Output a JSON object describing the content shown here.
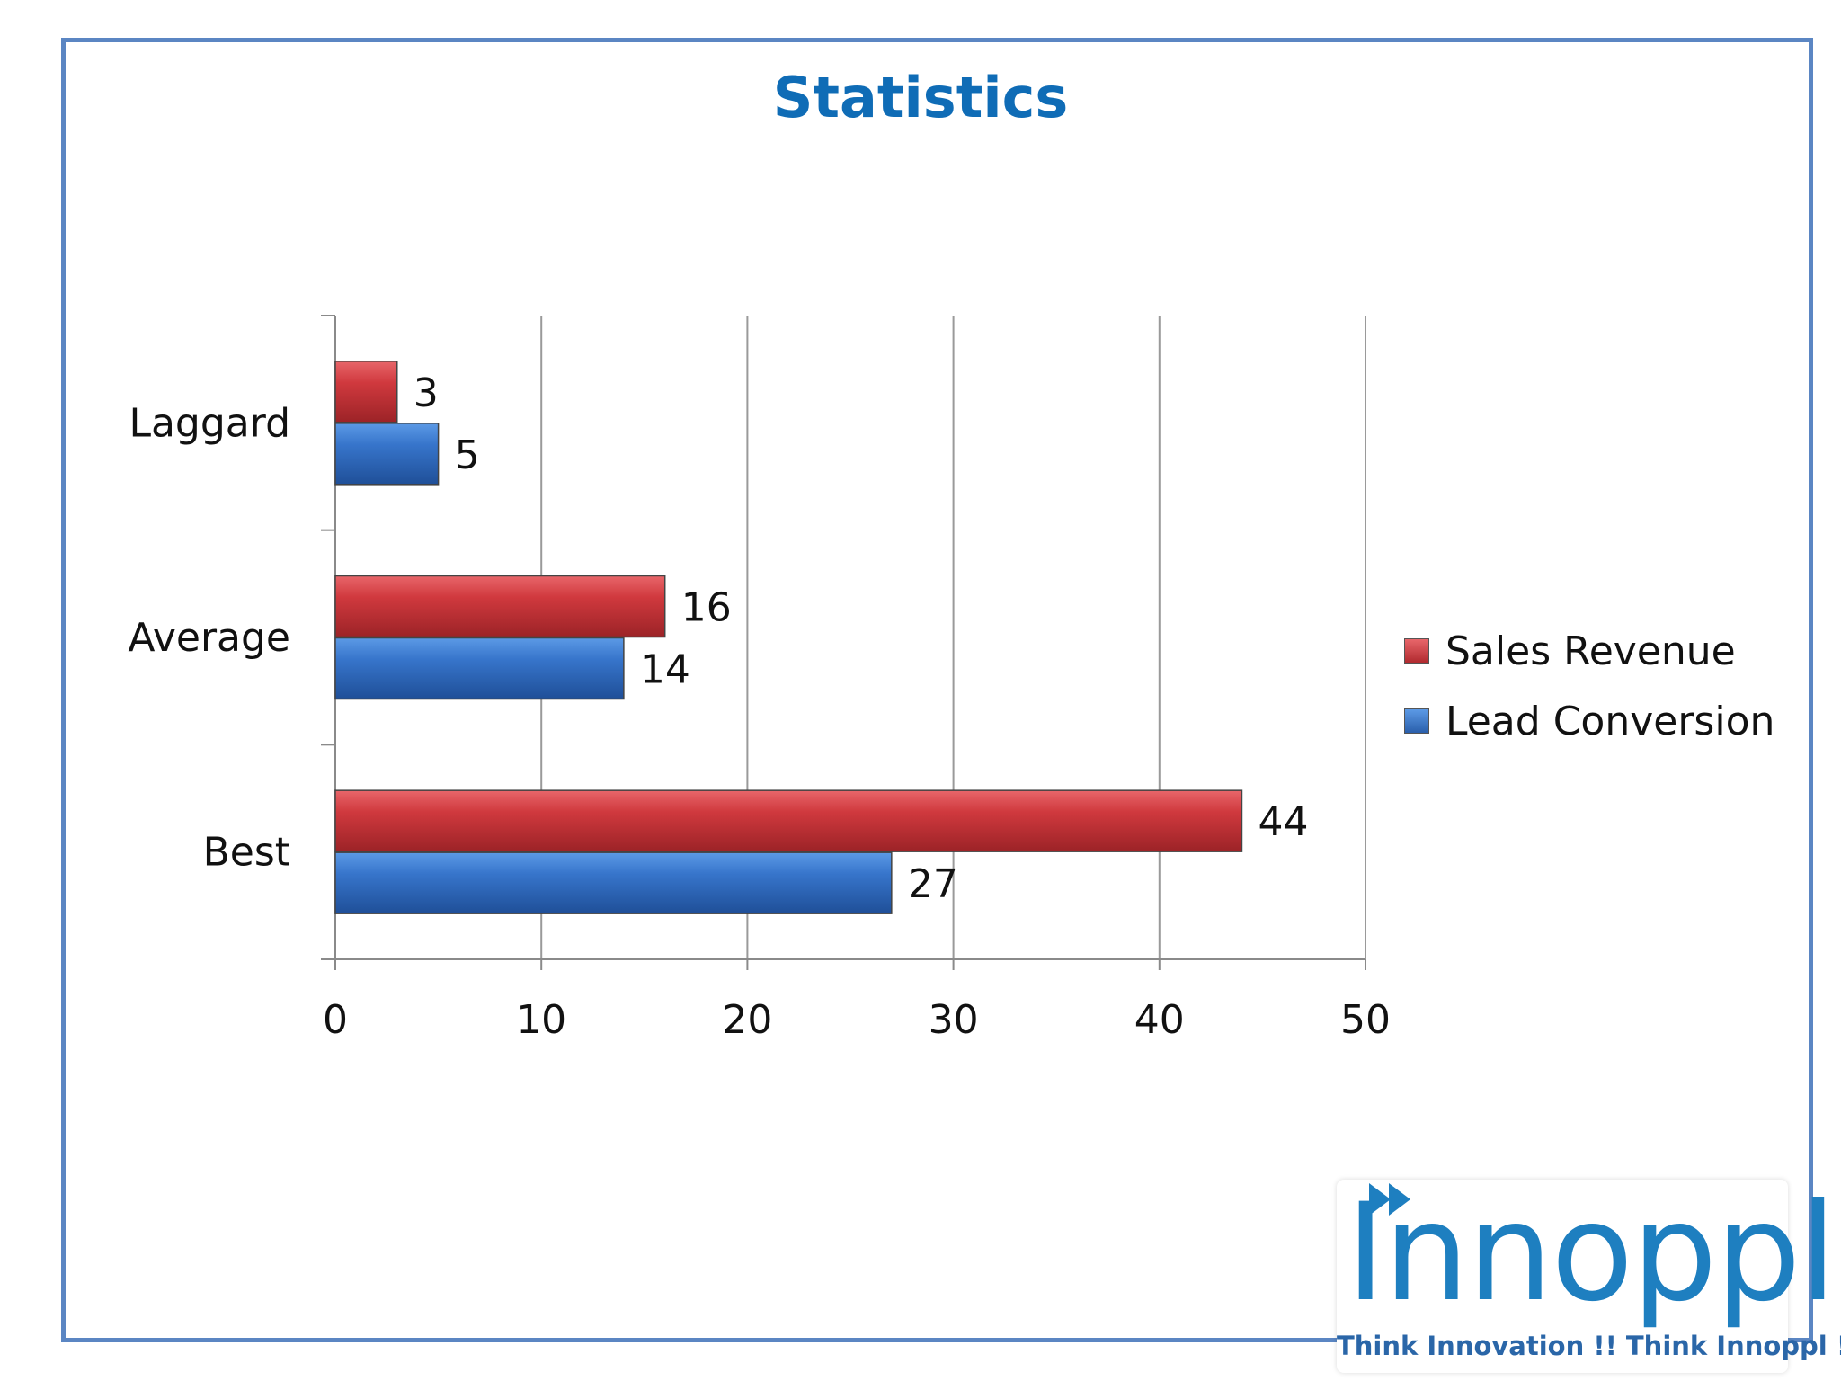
{
  "slide": {
    "title": "Statistics"
  },
  "chart_data": {
    "type": "bar",
    "orientation": "horizontal",
    "title": "Statistics",
    "categories": [
      "Laggard",
      "Average",
      "Best"
    ],
    "series": [
      {
        "name": "Sales Revenue",
        "values": [
          3,
          16,
          44
        ],
        "color": "#c0353a"
      },
      {
        "name": "Lead Conversion",
        "values": [
          5,
          14,
          27
        ],
        "color": "#2f6fc3"
      }
    ],
    "x_ticks": [
      0,
      10,
      20,
      30,
      40,
      50
    ],
    "xlim": [
      0,
      50
    ],
    "xlabel": "",
    "ylabel": "",
    "grid": true,
    "data_labels": true,
    "legend_position": "right"
  },
  "legend": {
    "items": [
      {
        "label": "Sales Revenue",
        "color": "#c0353a"
      },
      {
        "label": "Lead Conversion",
        "color": "#2f6fc3"
      }
    ]
  },
  "logo": {
    "name": "Innoppl",
    "tagline": "Think Innovation !! Think Innoppl !!",
    "color": "#1e7fc0"
  }
}
